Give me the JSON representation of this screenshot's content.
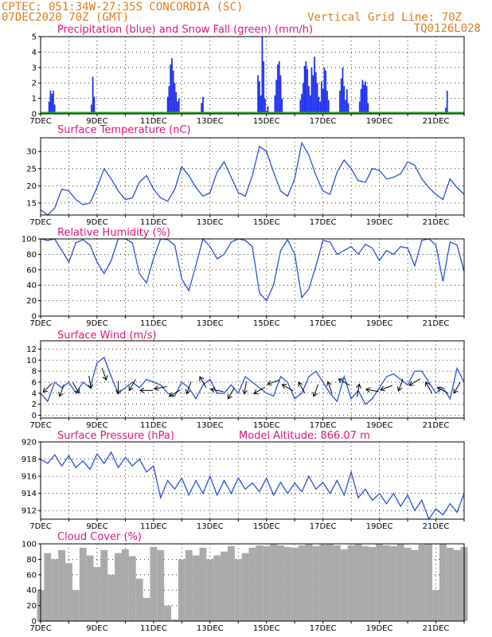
{
  "header": {
    "station": "CPTEC:   051:34W-27:35S   CONCORDIA (SC)",
    "run": "07DEC2020 70Z (GMT)",
    "grid_line": "Vertical Grid Line: 70Z",
    "code": "TQ0126L028"
  },
  "colors": {
    "header": "#e07b1c",
    "title": "#e0147a",
    "series": "#2b4fe0",
    "precip": "#2233ee",
    "snow": "#22aa22",
    "cloud": "#aaaaaa"
  },
  "x_tick_labels": [
    "7DEC",
    "9DEC",
    "11DEC",
    "13DEC",
    "15DEC",
    "17DEC",
    "19DEC",
    "21DEC"
  ],
  "chart_data": [
    {
      "type": "bar",
      "title": "Precipitation (blue) and Snow Fall (green) (mm/h)",
      "ylim": [
        0,
        5
      ],
      "yticks": [
        0,
        1,
        2,
        3,
        4,
        5
      ],
      "series": [
        {
          "name": "Precipitation",
          "x": [
            0.3,
            0.35,
            0.4,
            0.45,
            0.5,
            1.8,
            1.85,
            1.9,
            4.5,
            4.55,
            4.6,
            4.65,
            4.7,
            4.75,
            4.8,
            4.85,
            4.9,
            5.7,
            5.75,
            7.7,
            7.75,
            7.8,
            7.85,
            7.9,
            7.95,
            8.0,
            8.05,
            8.3,
            8.35,
            8.4,
            8.45,
            8.5,
            8.55,
            9.2,
            9.25,
            9.3,
            9.35,
            9.4,
            9.45,
            9.5,
            9.55,
            9.6,
            9.65,
            9.7,
            9.75,
            9.8,
            9.85,
            9.9,
            9.95,
            10.0,
            10.05,
            10.1,
            10.15,
            10.2,
            10.6,
            10.65,
            10.7,
            10.75,
            10.8,
            10.85,
            10.9,
            11.3,
            11.35,
            11.4,
            11.45,
            11.5,
            11.55,
            11.6,
            14.35,
            14.4
          ],
          "values": [
            0.8,
            1.5,
            1.3,
            1.5,
            0.6,
            0.6,
            2.4,
            1.1,
            1.1,
            1.8,
            3.2,
            3.6,
            2.8,
            2.0,
            1.4,
            0.8,
            1.0,
            0.7,
            1.1,
            2.5,
            2.1,
            1.2,
            5.0,
            3.4,
            1.0,
            0.2,
            0.5,
            1.2,
            2.2,
            3.2,
            3.4,
            2.5,
            1.0,
            0.9,
            1.3,
            2.0,
            3.1,
            3.4,
            2.9,
            1.8,
            1.2,
            3.0,
            2.5,
            3.7,
            2.7,
            2.0,
            1.1,
            0.8,
            2.1,
            1.6,
            3.0,
            2.8,
            1.5,
            0.9,
            1.5,
            2.3,
            3.0,
            1.8,
            0.9,
            1.6,
            0.7,
            0.8,
            1.6,
            2.2,
            1.9,
            2.1,
            1.8,
            0.7,
            0.4,
            1.5
          ]
        },
        {
          "name": "Snow Fall",
          "x": [],
          "values": []
        }
      ]
    },
    {
      "type": "line",
      "title": "Surface Temperature (nC)",
      "ylim": [
        11.5,
        34
      ],
      "yticks": [
        15,
        20,
        25,
        30
      ],
      "x": [
        0,
        0.25,
        0.5,
        0.75,
        1,
        1.25,
        1.5,
        1.75,
        2,
        2.25,
        2.5,
        2.75,
        3,
        3.25,
        3.5,
        3.75,
        4,
        4.25,
        4.5,
        4.75,
        5,
        5.25,
        5.5,
        5.75,
        6,
        6.25,
        6.5,
        6.75,
        7,
        7.25,
        7.5,
        7.75,
        8,
        8.25,
        8.5,
        8.75,
        9,
        9.25,
        9.5,
        9.75,
        10,
        10.25,
        10.5,
        10.75,
        11,
        11.25,
        11.5,
        11.75,
        12,
        12.25,
        12.5,
        12.75,
        13,
        13.25,
        13.5,
        13.75,
        14,
        14.25,
        14.5,
        14.75,
        15
      ],
      "series": [
        {
          "values": [
            13,
            11.5,
            13.5,
            19,
            18.5,
            16,
            14.5,
            15,
            19.5,
            25,
            22,
            18.5,
            16,
            16.5,
            21,
            23,
            19,
            16.5,
            15.5,
            19,
            25.5,
            23,
            19.5,
            17,
            18,
            24,
            27,
            22.5,
            18,
            17,
            23,
            31.5,
            30,
            24,
            18.5,
            17,
            22,
            32.5,
            29,
            23,
            18.5,
            17.5,
            24,
            27.5,
            25,
            21.5,
            21,
            25,
            24.5,
            22,
            22.5,
            23.5,
            27,
            26,
            22,
            19.5,
            17.5,
            16,
            22,
            19.5,
            17.5
          ]
        }
      ]
    },
    {
      "type": "line",
      "title": "Relative Humidity (%)",
      "ylim": [
        0,
        100
      ],
      "yticks": [
        0,
        20,
        40,
        60,
        80,
        100
      ],
      "x": [
        0,
        0.25,
        0.5,
        0.75,
        1,
        1.25,
        1.5,
        1.75,
        2,
        2.25,
        2.5,
        2.75,
        3,
        3.25,
        3.5,
        3.75,
        4,
        4.25,
        4.5,
        4.75,
        5,
        5.25,
        5.5,
        5.75,
        6,
        6.25,
        6.5,
        6.75,
        7,
        7.25,
        7.5,
        7.75,
        8,
        8.25,
        8.5,
        8.75,
        9,
        9.25,
        9.5,
        9.75,
        10,
        10.25,
        10.5,
        10.75,
        11,
        11.25,
        11.5,
        11.75,
        12,
        12.25,
        12.5,
        12.75,
        13,
        13.25,
        13.5,
        13.75,
        14,
        14.25,
        14.5,
        14.75,
        15
      ],
      "series": [
        {
          "values": [
            100,
            98,
            100,
            85,
            70,
            95,
            99,
            92,
            70,
            55,
            72,
            100,
            100,
            95,
            55,
            43,
            75,
            100,
            99,
            92,
            48,
            33,
            66,
            100,
            90,
            74,
            80,
            96,
            100,
            98,
            90,
            30,
            20,
            40,
            85,
            99,
            80,
            24,
            35,
            65,
            98,
            96,
            80,
            85,
            90,
            80,
            93,
            88,
            72,
            85,
            80,
            90,
            88,
            65,
            98,
            100,
            92,
            45,
            96,
            92,
            58
          ]
        }
      ]
    },
    {
      "type": "line",
      "title": "Surface Wind (m/s)",
      "ylim": [
        -0.5,
        13.5
      ],
      "yticks": [
        0,
        2,
        4,
        6,
        8,
        10,
        12
      ],
      "x": [
        0,
        0.25,
        0.5,
        0.75,
        1,
        1.25,
        1.5,
        1.75,
        2,
        2.25,
        2.5,
        2.75,
        3,
        3.25,
        3.5,
        3.75,
        4,
        4.25,
        4.5,
        4.75,
        5,
        5.25,
        5.5,
        5.75,
        6,
        6.25,
        6.5,
        6.75,
        7,
        7.25,
        7.5,
        7.75,
        8,
        8.25,
        8.5,
        8.75,
        9,
        9.25,
        9.5,
        9.75,
        10,
        10.25,
        10.5,
        10.75,
        11,
        11.25,
        11.5,
        11.75,
        12,
        12.25,
        12.5,
        12.75,
        13,
        13.25,
        13.5,
        13.75,
        14,
        14.25,
        14.5,
        14.75,
        15
      ],
      "series": [
        {
          "values": [
            4,
            2.5,
            6,
            5,
            6,
            4,
            6,
            5,
            9.5,
            10.5,
            7,
            4,
            5,
            6,
            5,
            6.5,
            6,
            5.5,
            4,
            3.5,
            6,
            5,
            3,
            5.5,
            6.5,
            4,
            4,
            5.5,
            4,
            7,
            6,
            5,
            4,
            3.5,
            7,
            6,
            3,
            4,
            7,
            8,
            6,
            4,
            2.5,
            7,
            3,
            4.5,
            2,
            3,
            5,
            7,
            7.5,
            6.5,
            5.5,
            8,
            8,
            6,
            4,
            5,
            3,
            8.5,
            6
          ]
        }
      ],
      "wind_arrows": {
        "x": [
          0.25,
          0.75,
          1.25,
          1.75,
          2.25,
          2.75,
          3.25,
          3.75,
          4.25,
          4.75,
          5.25,
          5.75,
          6.25,
          6.75,
          7.25,
          7.75,
          8.25,
          8.75,
          9.25,
          9.75,
          10.25,
          10.75,
          11.25,
          11.75,
          12.25,
          12.75,
          13.25,
          13.75,
          14.25,
          14.75
        ],
        "speed": [
          5,
          4.5,
          5,
          6,
          7.5,
          5,
          5.5,
          4.5,
          5,
          4,
          5,
          6,
          4.5,
          4,
          5,
          4.5,
          6,
          5,
          5,
          4.5,
          5,
          6,
          4.5,
          4.5,
          5,
          5.5,
          6,
          5,
          4.5,
          5
        ],
        "dir_deg": [
          225,
          200,
          150,
          170,
          160,
          180,
          210,
          270,
          260,
          240,
          200,
          330,
          280,
          210,
          190,
          240,
          250,
          300,
          330,
          200,
          340,
          300,
          10,
          280,
          250,
          200,
          240,
          330,
          300,
          210
        ]
      }
    },
    {
      "type": "line",
      "title": "Surface Pressure (hPa)",
      "subtitle": "Model Altitude: 866.07 m",
      "ylim": [
        911,
        920
      ],
      "yticks": [
        912,
        914,
        916,
        918,
        920
      ],
      "x": [
        0,
        0.25,
        0.5,
        0.75,
        1,
        1.25,
        1.5,
        1.75,
        2,
        2.25,
        2.5,
        2.75,
        3,
        3.25,
        3.5,
        3.75,
        4,
        4.25,
        4.5,
        4.75,
        5,
        5.25,
        5.5,
        5.75,
        6,
        6.25,
        6.5,
        6.75,
        7,
        7.25,
        7.5,
        7.75,
        8,
        8.25,
        8.5,
        8.75,
        9,
        9.25,
        9.5,
        9.75,
        10,
        10.25,
        10.5,
        10.75,
        11,
        11.25,
        11.5,
        11.75,
        12,
        12.25,
        12.5,
        12.75,
        13,
        13.25,
        13.5,
        13.75,
        14,
        14.25,
        14.5,
        14.75,
        15
      ],
      "series": [
        {
          "values": [
            918,
            917.5,
            918.5,
            917.2,
            918.4,
            917,
            917.8,
            916.8,
            918.6,
            917.5,
            918.8,
            917,
            918.2,
            917.2,
            918,
            916.5,
            917.2,
            913.5,
            915.5,
            914.5,
            915.8,
            913.8,
            915.5,
            914,
            916,
            913.8,
            915.5,
            914,
            915.8,
            914.5,
            915.2,
            914.2,
            915.8,
            913.8,
            915.3,
            914,
            915.2,
            914.2,
            916,
            914.5,
            915.3,
            914,
            915.5,
            913.8,
            916.5,
            913.5,
            914.5,
            913.2,
            914,
            912.8,
            914,
            912.5,
            913.8,
            912,
            913.2,
            911,
            912.2,
            911.5,
            912.8,
            911.8,
            914
          ]
        }
      ]
    },
    {
      "type": "area",
      "title": "Cloud Cover (%)",
      "ylim": [
        0,
        100
      ],
      "yticks": [
        0,
        20,
        40,
        60,
        80,
        100
      ],
      "x": [
        0,
        0.25,
        0.5,
        0.75,
        1,
        1.25,
        1.5,
        1.75,
        2,
        2.25,
        2.5,
        2.75,
        3,
        3.25,
        3.5,
        3.75,
        4,
        4.25,
        4.5,
        4.75,
        5,
        5.25,
        5.5,
        5.75,
        6,
        6.25,
        6.5,
        6.75,
        7,
        7.25,
        7.5,
        7.75,
        8,
        8.25,
        8.5,
        8.75,
        9,
        9.25,
        9.5,
        9.75,
        10,
        10.25,
        10.5,
        10.75,
        11,
        11.25,
        11.5,
        11.75,
        12,
        12.25,
        12.5,
        12.75,
        13,
        13.25,
        13.5,
        13.75,
        14,
        14.25,
        14.5,
        14.75,
        15
      ],
      "series": [
        {
          "values": [
            40,
            88,
            80,
            92,
            75,
            40,
            95,
            85,
            70,
            92,
            60,
            88,
            93,
            84,
            55,
            30,
            96,
            92,
            20,
            2,
            80,
            92,
            85,
            95,
            80,
            85,
            90,
            97,
            80,
            88,
            95,
            98,
            97,
            100,
            98,
            96,
            95,
            98,
            100,
            97,
            99,
            100,
            98,
            93,
            98,
            100,
            97,
            96,
            100,
            98,
            97,
            100,
            95,
            92,
            99,
            100,
            40,
            100,
            95,
            92,
            96
          ]
        }
      ]
    }
  ]
}
